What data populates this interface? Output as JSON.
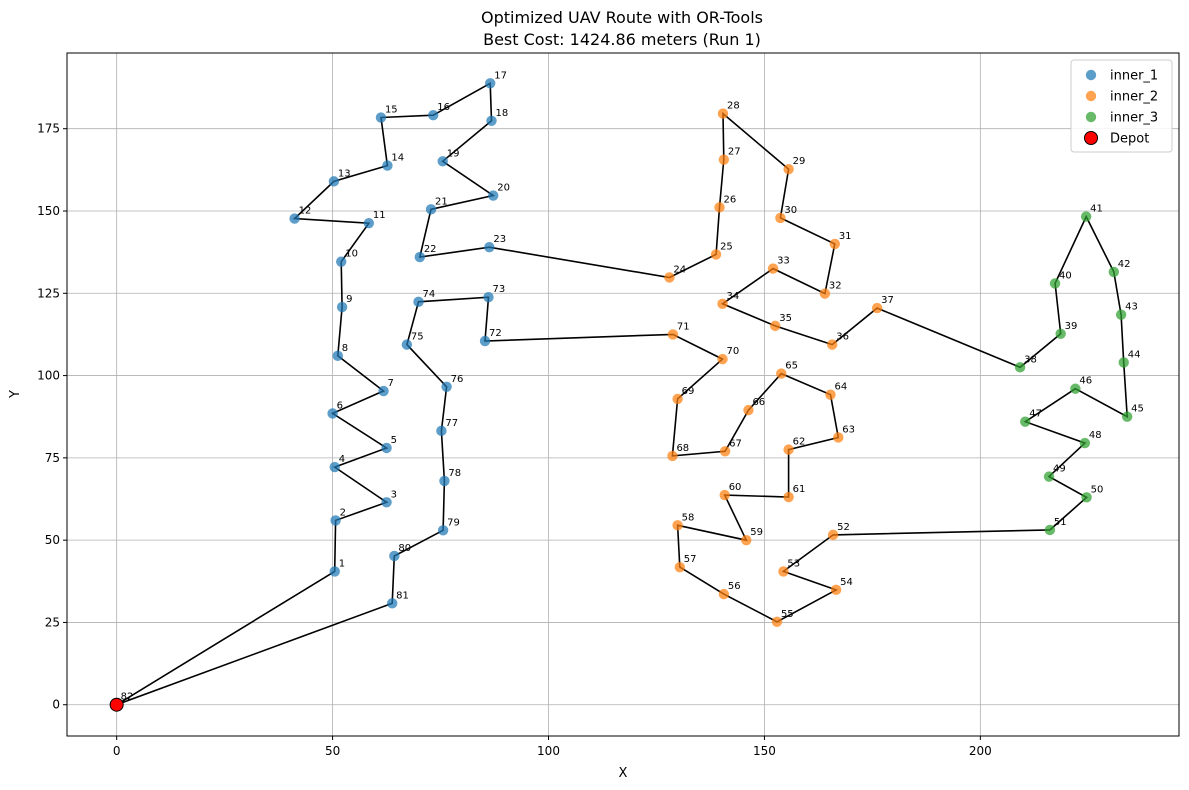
{
  "chart_data": {
    "type": "scatter",
    "title": "Optimized UAV Route with OR-Tools",
    "subtitle": "Best Cost: 1424.86 meters (Run 1)",
    "xlabel": "X",
    "ylabel": "Y",
    "xlim": [
      -11.5,
      246
    ],
    "ylim": [
      -9.5,
      198
    ],
    "xticks": [
      0,
      50,
      100,
      150,
      200
    ],
    "yticks": [
      0,
      25,
      50,
      75,
      100,
      125,
      150,
      175
    ],
    "grid": true,
    "legend_position": "top-right",
    "colors": {
      "inner_1": "#1f77b4",
      "inner_2": "#ff7f0e",
      "inner_3": "#2ca02c",
      "Depot": "#ff0000",
      "route": "#000000"
    },
    "series": [
      {
        "name": "inner_1",
        "points": [
          {
            "id": "1",
            "x": 50.5,
            "y": 40.5
          },
          {
            "id": "2",
            "x": 50.7,
            "y": 56
          },
          {
            "id": "3",
            "x": 62.5,
            "y": 61.5
          },
          {
            "id": "4",
            "x": 50.5,
            "y": 72.2
          },
          {
            "id": "5",
            "x": 62.5,
            "y": 78
          },
          {
            "id": "6",
            "x": 50,
            "y": 88.5
          },
          {
            "id": "7",
            "x": 61.8,
            "y": 95.3
          },
          {
            "id": "8",
            "x": 51.2,
            "y": 106
          },
          {
            "id": "9",
            "x": 52.2,
            "y": 120.8
          },
          {
            "id": "10",
            "x": 52,
            "y": 134.6
          },
          {
            "id": "11",
            "x": 58.4,
            "y": 146.3
          },
          {
            "id": "12",
            "x": 41.2,
            "y": 147.7
          },
          {
            "id": "13",
            "x": 50.3,
            "y": 159
          },
          {
            "id": "14",
            "x": 62.7,
            "y": 163.8
          },
          {
            "id": "15",
            "x": 61.2,
            "y": 178.4
          },
          {
            "id": "16",
            "x": 73.3,
            "y": 179.1
          },
          {
            "id": "17",
            "x": 86.5,
            "y": 188.8
          },
          {
            "id": "18",
            "x": 86.8,
            "y": 177.4
          },
          {
            "id": "19",
            "x": 75.5,
            "y": 165.1
          },
          {
            "id": "20",
            "x": 87.2,
            "y": 154.7
          },
          {
            "id": "21",
            "x": 72.8,
            "y": 150.5
          },
          {
            "id": "22",
            "x": 70.2,
            "y": 136
          },
          {
            "id": "23",
            "x": 86.3,
            "y": 139
          },
          {
            "id": "73",
            "x": 86.1,
            "y": 123.8
          },
          {
            "id": "74",
            "x": 69.9,
            "y": 122.4
          },
          {
            "id": "72",
            "x": 85.3,
            "y": 110.5
          },
          {
            "id": "75",
            "x": 67.2,
            "y": 109.4
          },
          {
            "id": "76",
            "x": 76.4,
            "y": 96.6
          },
          {
            "id": "77",
            "x": 75.2,
            "y": 83.2
          },
          {
            "id": "78",
            "x": 75.9,
            "y": 68
          },
          {
            "id": "79",
            "x": 75.6,
            "y": 53
          },
          {
            "id": "80",
            "x": 64.3,
            "y": 45.2
          },
          {
            "id": "81",
            "x": 63.8,
            "y": 30.8
          }
        ]
      },
      {
        "name": "inner_2",
        "points": [
          {
            "id": "24",
            "x": 128,
            "y": 129.8
          },
          {
            "id": "25",
            "x": 138.8,
            "y": 136.8
          },
          {
            "id": "26",
            "x": 139.6,
            "y": 151.1
          },
          {
            "id": "27",
            "x": 140.6,
            "y": 165.6
          },
          {
            "id": "28",
            "x": 140.4,
            "y": 179.6
          },
          {
            "id": "29",
            "x": 155.6,
            "y": 162.7
          },
          {
            "id": "30",
            "x": 153.7,
            "y": 147.9
          },
          {
            "id": "31",
            "x": 166.3,
            "y": 140
          },
          {
            "id": "32",
            "x": 164,
            "y": 124.9
          },
          {
            "id": "33",
            "x": 152,
            "y": 132.5
          },
          {
            "id": "34",
            "x": 140.3,
            "y": 121.8
          },
          {
            "id": "35",
            "x": 152.5,
            "y": 115.1
          },
          {
            "id": "36",
            "x": 165.7,
            "y": 109.4
          },
          {
            "id": "37",
            "x": 176.1,
            "y": 120.5
          },
          {
            "id": "71",
            "x": 128.8,
            "y": 112.5
          },
          {
            "id": "70",
            "x": 140.3,
            "y": 105
          },
          {
            "id": "65",
            "x": 153.9,
            "y": 100.6
          },
          {
            "id": "64",
            "x": 165.3,
            "y": 94.2
          },
          {
            "id": "69",
            "x": 129.9,
            "y": 92.9
          },
          {
            "id": "66",
            "x": 146.3,
            "y": 89.5
          },
          {
            "id": "63",
            "x": 167.1,
            "y": 81.2
          },
          {
            "id": "62",
            "x": 155.6,
            "y": 77.5
          },
          {
            "id": "67",
            "x": 140.9,
            "y": 77
          },
          {
            "id": "68",
            "x": 128.7,
            "y": 75.6
          },
          {
            "id": "60",
            "x": 140.8,
            "y": 63.7
          },
          {
            "id": "61",
            "x": 155.6,
            "y": 63.1
          },
          {
            "id": "58",
            "x": 129.9,
            "y": 54.5
          },
          {
            "id": "59",
            "x": 145.8,
            "y": 50
          },
          {
            "id": "52",
            "x": 165.9,
            "y": 51.6
          },
          {
            "id": "57",
            "x": 130.4,
            "y": 41.8
          },
          {
            "id": "53",
            "x": 154.4,
            "y": 40.5
          },
          {
            "id": "54",
            "x": 166.6,
            "y": 34.9
          },
          {
            "id": "56",
            "x": 140.6,
            "y": 33.6
          },
          {
            "id": "55",
            "x": 152.9,
            "y": 25.2
          }
        ]
      },
      {
        "name": "inner_3",
        "points": [
          {
            "id": "38",
            "x": 209.2,
            "y": 102.5
          },
          {
            "id": "39",
            "x": 218.6,
            "y": 112.7
          },
          {
            "id": "40",
            "x": 217.3,
            "y": 128
          },
          {
            "id": "41",
            "x": 224.5,
            "y": 148.3
          },
          {
            "id": "42",
            "x": 230.9,
            "y": 131.5
          },
          {
            "id": "43",
            "x": 232.6,
            "y": 118.5
          },
          {
            "id": "44",
            "x": 233.2,
            "y": 104
          },
          {
            "id": "45",
            "x": 234,
            "y": 87.5
          },
          {
            "id": "46",
            "x": 222,
            "y": 96
          },
          {
            "id": "47",
            "x": 210.4,
            "y": 86
          },
          {
            "id": "48",
            "x": 224.2,
            "y": 79.5
          },
          {
            "id": "49",
            "x": 215.9,
            "y": 69.3
          },
          {
            "id": "50",
            "x": 224.6,
            "y": 63
          },
          {
            "id": "51",
            "x": 216.1,
            "y": 53.1
          }
        ]
      },
      {
        "name": "Depot",
        "points": [
          {
            "id": "82",
            "x": 0,
            "y": 0
          }
        ]
      }
    ],
    "route": [
      "82",
      "1",
      "2",
      "3",
      "4",
      "5",
      "6",
      "7",
      "8",
      "9",
      "10",
      "11",
      "12",
      "13",
      "14",
      "15",
      "16",
      "17",
      "18",
      "19",
      "20",
      "21",
      "22",
      "23",
      "24",
      "25",
      "26",
      "27",
      "28",
      "29",
      "30",
      "31",
      "32",
      "33",
      "34",
      "35",
      "36",
      "37",
      "38",
      "39",
      "40",
      "41",
      "42",
      "43",
      "44",
      "45",
      "46",
      "47",
      "48",
      "49",
      "50",
      "51",
      "52",
      "53",
      "54",
      "55",
      "56",
      "57",
      "58",
      "59",
      "60",
      "61",
      "62",
      "63",
      "64",
      "65",
      "66",
      "67",
      "68",
      "69",
      "70",
      "71",
      "72",
      "73",
      "74",
      "75",
      "76",
      "77",
      "78",
      "79",
      "80",
      "81",
      "82"
    ]
  }
}
